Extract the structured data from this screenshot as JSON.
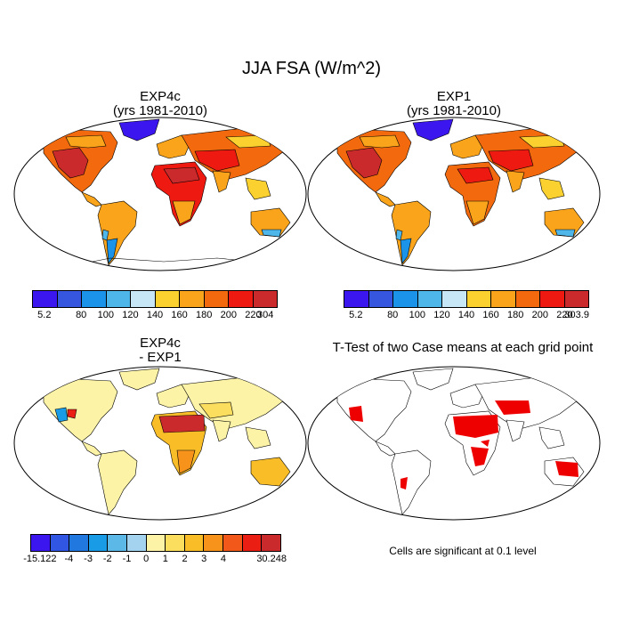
{
  "main_title": "JJA FSA (W/m^2)",
  "panels": [
    {
      "title_line1": "EXP4c",
      "title_line2": "(yrs 1981-2010)"
    },
    {
      "title_line1": "EXP1",
      "title_line2": "(yrs 1981-2010)"
    },
    {
      "title_line1": "EXP4c",
      "title_line2": "- EXP1"
    },
    {
      "title_line1": "T-Test of two Case means at each grid point",
      "title_line2": ""
    }
  ],
  "colorbars": [
    {
      "colors": [
        "#3b16ee",
        "#3656e0",
        "#1a93e8",
        "#4fb6ea",
        "#c7e7f6",
        "#fbd130",
        "#f9a41a",
        "#f36a0e",
        "#ee1a12",
        "#cb2a2d"
      ],
      "labels": [
        "5.2",
        "80",
        "100",
        "120",
        "140",
        "160",
        "180",
        "200",
        "220",
        "304"
      ]
    },
    {
      "colors": [
        "#3b16ee",
        "#3656e0",
        "#1a93e8",
        "#4fb6ea",
        "#c7e7f6",
        "#fbd130",
        "#f9a41a",
        "#f36a0e",
        "#ee1a12",
        "#cb2a2d"
      ],
      "labels": [
        "5.2",
        "80",
        "100",
        "120",
        "140",
        "160",
        "180",
        "200",
        "220",
        "303.9"
      ]
    },
    {
      "colors": [
        "#3b16ee",
        "#3256e4",
        "#2179e0",
        "#1a9be6",
        "#5cb8e6",
        "#a3d3ee",
        "#fcf3a6",
        "#fbde5e",
        "#f9bd27",
        "#f7931a",
        "#f2581a",
        "#ea1e12",
        "#cb2a2d"
      ],
      "labels": [
        "-15.122",
        "-4",
        "-3",
        "-2",
        "-1",
        "0",
        "1",
        "2",
        "3",
        "4",
        "30.248"
      ]
    }
  ],
  "significance_note": "Cells are significant at 0.1 level"
}
